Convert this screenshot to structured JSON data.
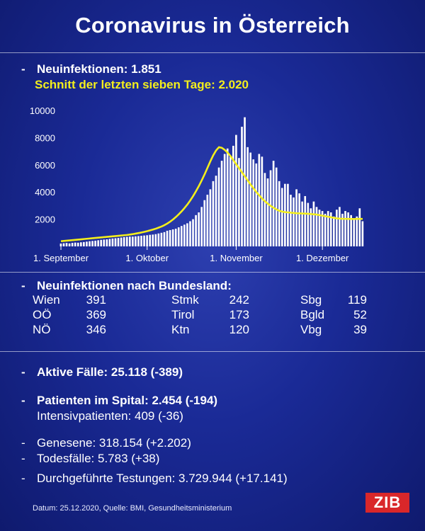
{
  "header": {
    "title": "Coronavirus in Österreich"
  },
  "summary": {
    "new_infections": "Neuinfektionen: 1.851",
    "seven_day_avg": "Schnitt der letzten sieben Tage: 2.020"
  },
  "chart_data": {
    "type": "bar",
    "series": [
      {
        "name": "",
        "type": "bar",
        "values": [
          210,
          230,
          250,
          220,
          260,
          280,
          270,
          300,
          320,
          350,
          380,
          400,
          420,
          450,
          480,
          500,
          520,
          550,
          580,
          600,
          620,
          650,
          680,
          700,
          720,
          720,
          740,
          760,
          780,
          800,
          820,
          850,
          870,
          900,
          950,
          1000,
          1050,
          1150,
          1200,
          1250,
          1300,
          1400,
          1500,
          1600,
          1700,
          1850,
          2000,
          2300,
          2500,
          2900,
          3400,
          3800,
          4200,
          4800,
          5200,
          5800,
          6300,
          6800,
          7200,
          6600,
          7400,
          8200,
          6500,
          8800,
          9500,
          7300,
          6900,
          6400,
          6100,
          6800,
          6600,
          5400,
          5000,
          5600,
          6300,
          5800,
          4800,
          4300,
          4600,
          4600,
          3800,
          3600,
          4200,
          3900,
          3300,
          3700,
          3200,
          2800,
          3300,
          2900,
          2700,
          2600,
          2400,
          2600,
          2500,
          2200,
          2700,
          2900,
          2400,
          2600,
          2500,
          2300,
          2000,
          2200,
          2800,
          1851
        ]
      },
      {
        "name": "",
        "type": "line",
        "values": [
          380,
          400,
          420,
          440,
          460,
          480,
          500,
          520,
          540,
          560,
          580,
          600,
          620,
          640,
          660,
          680,
          700,
          720,
          740,
          760,
          780,
          800,
          820,
          840,
          870,
          900,
          940,
          980,
          1020,
          1070,
          1120,
          1180,
          1240,
          1300,
          1380,
          1460,
          1560,
          1680,
          1820,
          1980,
          2160,
          2360,
          2580,
          2820,
          3080,
          3380,
          3700,
          4060,
          4440,
          4860,
          5300,
          5780,
          6260,
          6700,
          7060,
          7300,
          7250,
          7100,
          6900,
          6650,
          6350,
          6050,
          5750,
          5450,
          5150,
          4850,
          4550,
          4280,
          4000,
          3760,
          3520,
          3320,
          3140,
          2980,
          2840,
          2720,
          2620,
          2560,
          2520,
          2500,
          2480,
          2460,
          2440,
          2430,
          2420,
          2410,
          2400,
          2380,
          2360,
          2340,
          2300,
          2260,
          2220,
          2180,
          2140,
          2100,
          2060,
          2040,
          2030,
          2025,
          2020,
          2015,
          2015,
          2020,
          2020,
          2020
        ]
      }
    ],
    "ylim": [
      0,
      10000
    ],
    "yticks": [
      2000,
      4000,
      6000,
      8000,
      10000
    ],
    "xticks": [
      {
        "index": 0,
        "label": "1. September"
      },
      {
        "index": 30,
        "label": "1. Oktober"
      },
      {
        "index": 61,
        "label": "1. November"
      },
      {
        "index": 91,
        "label": "1. Dezember"
      }
    ],
    "colors": {
      "bars": "#ffffff",
      "line": "#f3ee1c"
    },
    "grid": false
  },
  "bundesland": {
    "heading": "Neuinfektionen nach Bundesland:",
    "items": [
      {
        "name": "Wien",
        "value": "391"
      },
      {
        "name": "Stmk",
        "value": "242"
      },
      {
        "name": "Sbg",
        "value": "119"
      },
      {
        "name": "OÖ",
        "value": "369"
      },
      {
        "name": "Tirol",
        "value": "173"
      },
      {
        "name": "Bgld",
        "value": "52"
      },
      {
        "name": "NÖ",
        "value": "346"
      },
      {
        "name": "Ktn",
        "value": "120"
      },
      {
        "name": "Vbg",
        "value": "39"
      }
    ]
  },
  "stats": {
    "active": "Aktive Fälle: 25.118 (-389)",
    "hospital": "Patienten im Spital: 2.454 (-194)",
    "icu": "Intensivpatienten: 409 (-36)",
    "recovered": "Genesene: 318.154 (+2.202)",
    "deaths": "Todesfälle: 5.783 (+38)",
    "tests": "Durchgeführte Testungen: 3.729.944 (+17.141)"
  },
  "footer": {
    "source": "Datum: 25.12.2020, Quelle: BMI, Gesundheitsministerium"
  },
  "logo": {
    "text": "ZIB"
  }
}
